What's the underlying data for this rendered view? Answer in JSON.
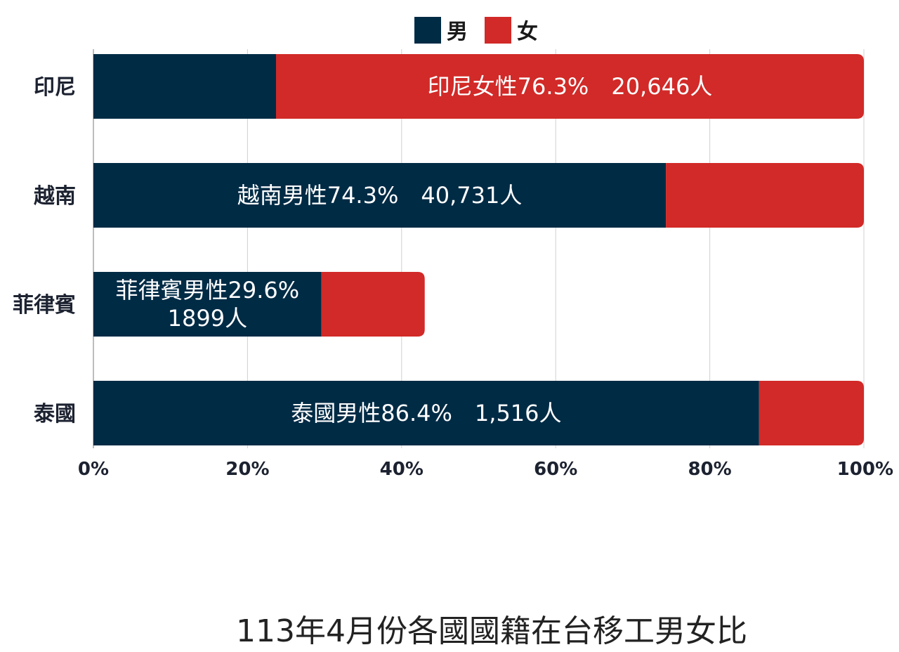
{
  "chart_data": {
    "type": "bar",
    "orientation": "horizontal",
    "stacked": true,
    "title": "",
    "xlabel": "",
    "ylabel": "",
    "xlim": [
      0,
      100
    ],
    "x_ticks": [
      "0%",
      "20%",
      "40%",
      "60%",
      "80%",
      "100%"
    ],
    "grid": true,
    "legend_position": "top",
    "categories": [
      "印尼",
      "越南",
      "菲律賓",
      "泰國"
    ],
    "series": [
      {
        "name": "男",
        "color": "#002b45",
        "values": [
          23.7,
          74.3,
          29.6,
          86.4
        ]
      },
      {
        "name": "女",
        "color": "#d12a28",
        "values": [
          76.3,
          25.7,
          13.4,
          13.6
        ]
      }
    ],
    "annotations": [
      {
        "category": "印尼",
        "series": "女",
        "lines": [
          "印尼女性76.3%　20,646人"
        ]
      },
      {
        "category": "越南",
        "series": "男",
        "lines": [
          "越南男性74.3%　40,731人"
        ]
      },
      {
        "category": "菲律賓",
        "series": "男",
        "lines": [
          "菲律賓男性29.6%",
          "1899人"
        ]
      },
      {
        "category": "泰國",
        "series": "男",
        "lines": [
          "泰國男性86.4%　1,516人"
        ]
      }
    ]
  },
  "caption": "113年4月份各國國籍在台移工男女比"
}
